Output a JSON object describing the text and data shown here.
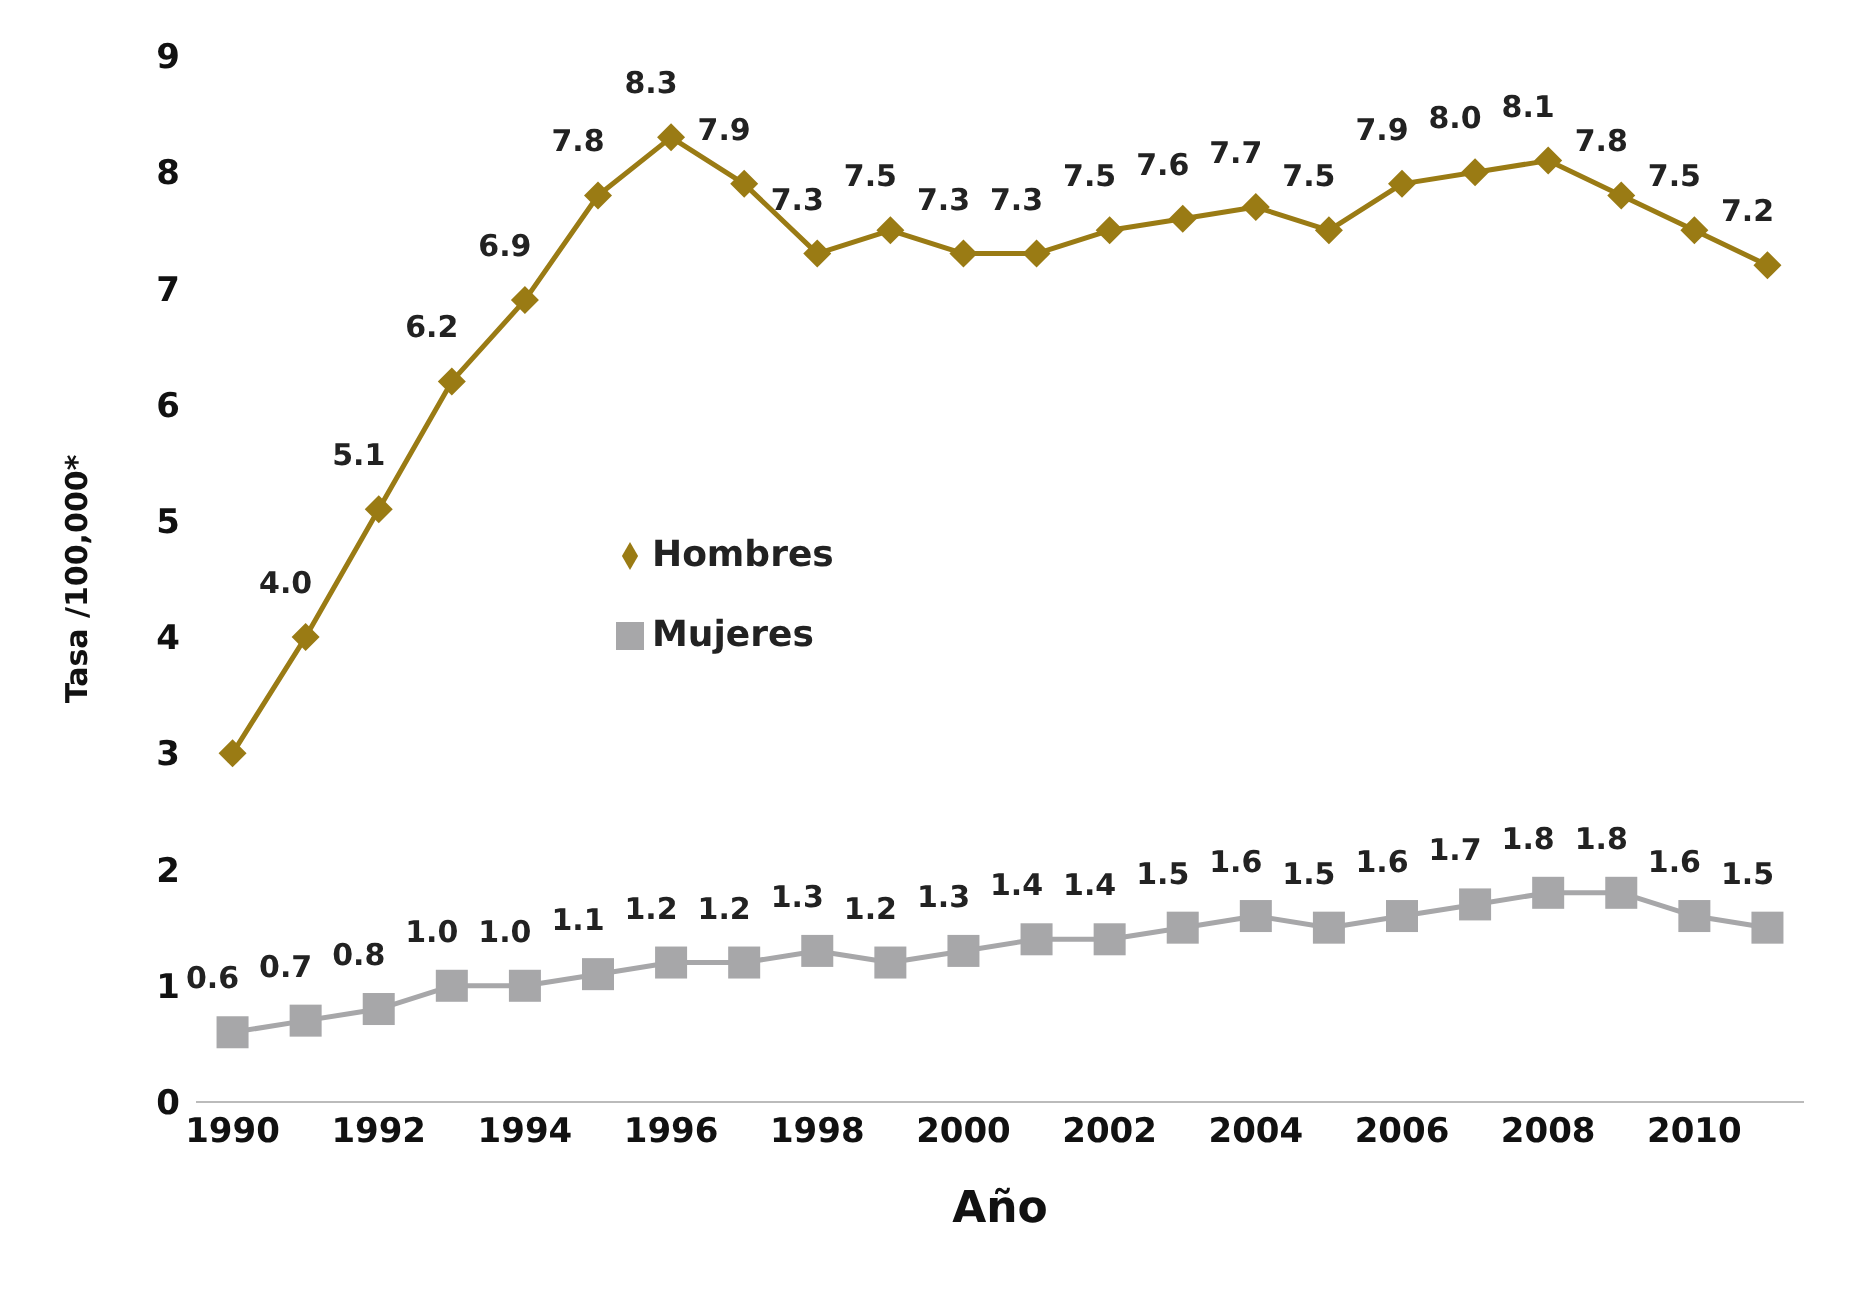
{
  "chart_data": {
    "type": "line",
    "xlabel": "Año",
    "ylabel": "Tasa /100,000*",
    "x": [
      1990,
      1991,
      1992,
      1993,
      1994,
      1995,
      1996,
      1997,
      1998,
      1999,
      2000,
      2001,
      2002,
      2003,
      2004,
      2005,
      2006,
      2007,
      2008,
      2009,
      2010,
      2011
    ],
    "xlim": [
      1989.5,
      2011.5
    ],
    "xticks": [
      1990,
      1992,
      1994,
      1996,
      1998,
      2000,
      2002,
      2004,
      2006,
      2008,
      2010
    ],
    "ylim": [
      0,
      9
    ],
    "yticks": [
      0,
      1,
      2,
      3,
      4,
      5,
      6,
      7,
      8,
      9
    ],
    "grid": false,
    "legend": "center left",
    "series": [
      {
        "name": "Hombres",
        "color": "#9a7b14",
        "marker": "diamond",
        "values": [
          3.0,
          4.0,
          5.1,
          6.2,
          6.9,
          7.8,
          8.3,
          7.9,
          7.3,
          7.5,
          7.3,
          7.3,
          7.5,
          7.6,
          7.7,
          7.5,
          7.9,
          8.0,
          8.1,
          7.8,
          7.5,
          7.2
        ],
        "value_labels": [
          null,
          "4.0",
          "5.1",
          "6.2",
          "6.9",
          "7.8",
          "8.3",
          "7.9",
          "7.3",
          "7.5",
          "7.3",
          "7.3",
          "7.5",
          "7.6",
          "7.7",
          "7.5",
          "7.9",
          "8.0",
          "8.1",
          "7.8",
          "7.5",
          "7.2"
        ]
      },
      {
        "name": "Mujeres",
        "color": "#a7a7a9",
        "marker": "square",
        "values": [
          0.6,
          0.7,
          0.8,
          1.0,
          1.0,
          1.1,
          1.2,
          1.2,
          1.3,
          1.2,
          1.3,
          1.4,
          1.4,
          1.5,
          1.6,
          1.5,
          1.6,
          1.7,
          1.8,
          1.8,
          1.6,
          1.5
        ],
        "value_labels": [
          "0.6",
          "0.7",
          "0.8",
          "1.0",
          "1.0",
          "1.1",
          "1.2",
          "1.2",
          "1.3",
          "1.2",
          "1.3",
          "1.4",
          "1.4",
          "1.5",
          "1.6",
          "1.5",
          "1.6",
          "1.7",
          "1.8",
          "1.8",
          "1.6",
          "1.5"
        ]
      }
    ]
  }
}
